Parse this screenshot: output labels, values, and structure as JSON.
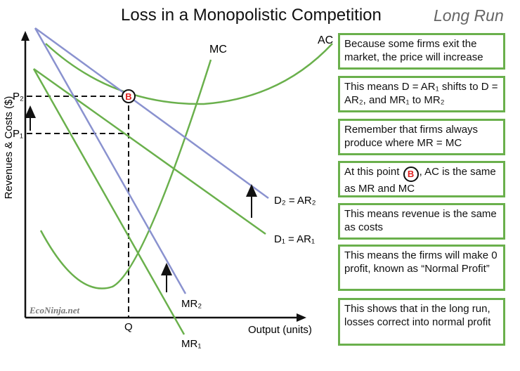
{
  "title": "Loss in a Monopolistic Competition",
  "subtitle": "Long Run",
  "axes": {
    "y_label": "Revenues & Costs ($)",
    "x_label": "Output (units)"
  },
  "labels": {
    "mc": "MC",
    "ac": "AC",
    "d2": "D₂ = AR₂",
    "d1": "D₁ = AR₁",
    "mr2": "MR₂",
    "mr1": "MR₁",
    "p2": "P₂",
    "p1": "P₁",
    "q": "Q",
    "point": "B",
    "watermark": "EcoNinja.net"
  },
  "colors": {
    "green": "#6ab04c",
    "blue": "#8a92cf",
    "badge_red": "#e02020"
  },
  "explanations": [
    {
      "text": "Because some firms exit the market, the price will increase"
    },
    {
      "text": "This means D = AR₁ shifts to D = AR₂, and MR₁ to MR₂"
    },
    {
      "text": "Remember that firms always produce where MR = MC"
    },
    {
      "before": "At this point",
      "after": ", AC is the same as MR and MC"
    },
    {
      "text": "This means revenue is the same as costs"
    },
    {
      "text": "This means the firms will make 0 profit, known as “Normal Profit”"
    },
    {
      "text": "This shows that in the long run, losses correct into normal profit"
    }
  ]
}
